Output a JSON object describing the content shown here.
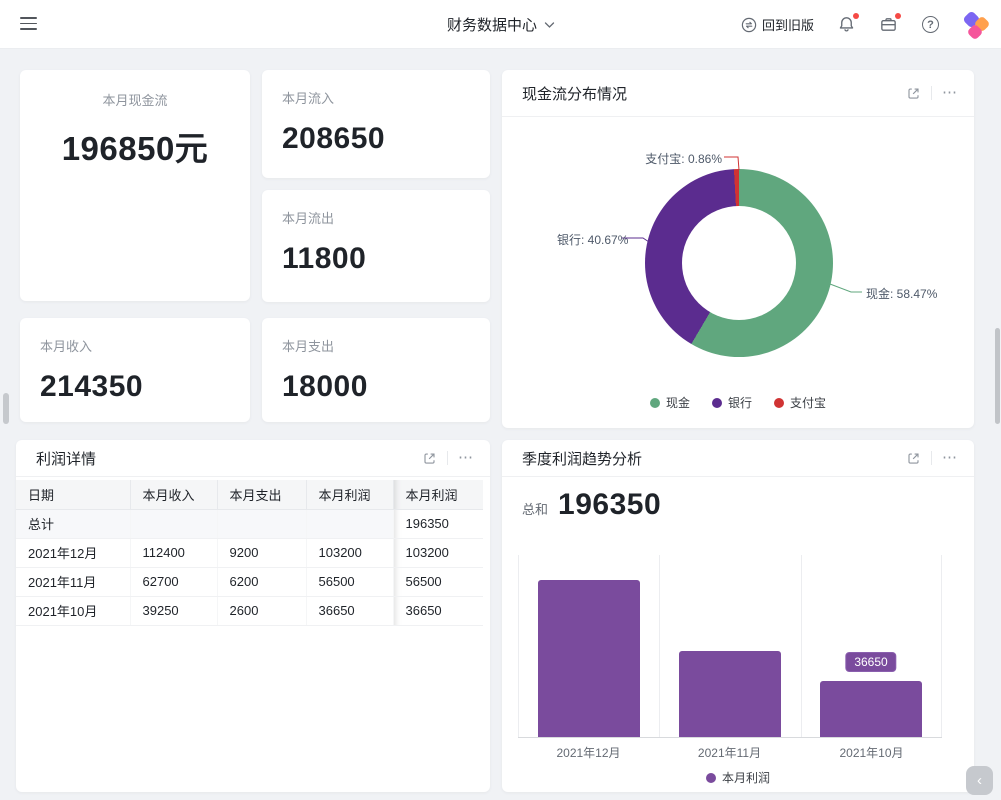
{
  "navbar": {
    "title": "财务数据中心",
    "back_to_old": "回到旧版"
  },
  "icons": {
    "more": "⋯",
    "help": "?",
    "collapse": "‹",
    "chevron_down": "˅"
  },
  "metric_cards": {
    "cashflow": {
      "label": "本月现金流",
      "value": "196850元"
    },
    "inflow": {
      "label": "本月流入",
      "value": "208650"
    },
    "outflow": {
      "label": "本月流出",
      "value": "11800"
    },
    "income": {
      "label": "本月收入",
      "value": "214350"
    },
    "expense": {
      "label": "本月支出",
      "value": "18000"
    }
  },
  "donut_panel": {
    "title": "现金流分布情况"
  },
  "table_panel": {
    "title": "利润详情",
    "columns": [
      "日期",
      "本月收入",
      "本月支出",
      "本月利润",
      "本月利润"
    ],
    "rows": [
      [
        "总计",
        "",
        "",
        "",
        "196350"
      ],
      [
        "2021年12月",
        "112400",
        "9200",
        "103200",
        "103200"
      ],
      [
        "2021年11月",
        "62700",
        "6200",
        "56500",
        "56500"
      ],
      [
        "2021年10月",
        "39250",
        "2600",
        "36650",
        "36650"
      ]
    ]
  },
  "bar_panel": {
    "title": "季度利润趋势分析",
    "total_label": "总和",
    "total_value": "196350"
  },
  "chart_data": [
    {
      "type": "pie",
      "title": "现金流分布情况",
      "donut": true,
      "labels": [
        "现金",
        "银行",
        "支付宝"
      ],
      "values": [
        58.47,
        40.67,
        0.86
      ],
      "unit": "%",
      "colors": [
        "#60A77E",
        "#5B2C8F",
        "#D03333"
      ],
      "callouts": [
        "现金: 58.47%",
        "银行: 40.67%",
        "支付宝: 0.86%"
      ],
      "legend_position": "bottom"
    },
    {
      "type": "bar",
      "title": "季度利润趋势分析",
      "categories": [
        "2021年12月",
        "2021年11月",
        "2021年10月"
      ],
      "series": [
        {
          "name": "本月利润",
          "values": [
            103200,
            56500,
            36650
          ]
        }
      ],
      "bar_color": "#7A4B9D",
      "data_label": {
        "category": "2021年10月",
        "value": "36650"
      },
      "ylim": [
        0,
        120000
      ],
      "grid": true,
      "legend_position": "bottom"
    }
  ]
}
